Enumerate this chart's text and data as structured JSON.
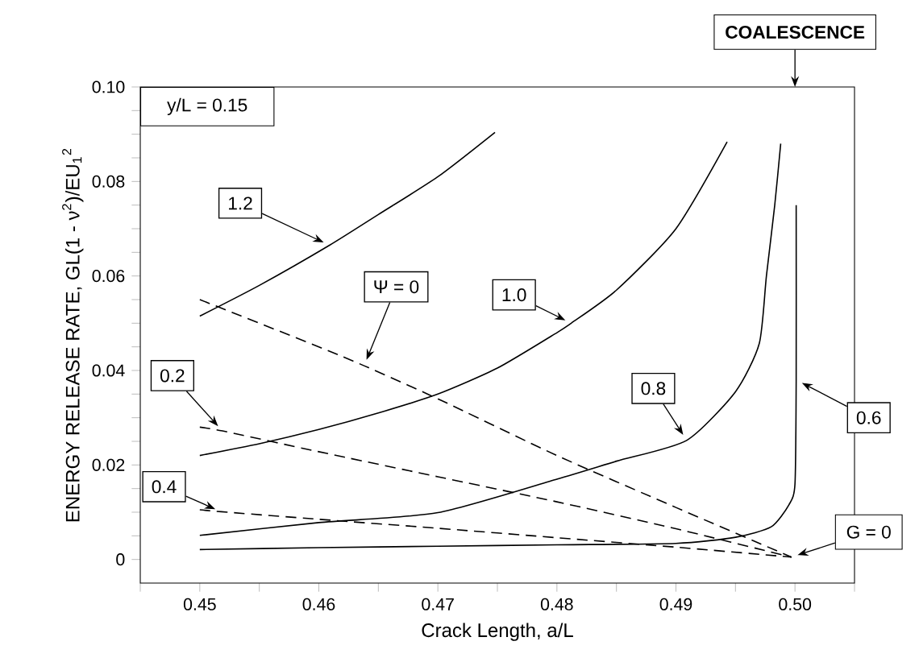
{
  "chart_data": {
    "type": "line",
    "xlabel": "Crack Length, a/L",
    "ylabel": "ENERGY RELEASE RATE, GL(1 - ν$^{2}$)/EU$_{1}$$^{2}$",
    "xlim": [
      0.445,
      0.505
    ],
    "ylim": [
      -0.005,
      0.1
    ],
    "xticks": [
      {
        "value": 0.445,
        "label": null
      },
      0.45,
      {
        "value": 0.455,
        "label": null
      },
      0.46,
      {
        "value": 0.465,
        "label": null
      },
      0.47,
      {
        "value": 0.475,
        "label": null
      },
      0.48,
      {
        "value": 0.485,
        "label": null
      },
      0.49,
      {
        "value": 0.495,
        "label": null
      },
      {
        "value": 0.5,
        "label": "0.50"
      },
      {
        "value": 0.505,
        "label": null
      }
    ],
    "yticks": [
      0,
      {
        "value": 0.005,
        "label": null
      },
      0.02,
      {
        "value": 0.01,
        "label": null
      },
      {
        "value": 0.015,
        "label": null
      },
      {
        "value": 0.025,
        "label": null
      },
      {
        "value": 0.03,
        "label": null
      },
      {
        "value": 0.035,
        "label": null
      },
      0.04,
      {
        "value": 0.045,
        "label": null
      },
      {
        "value": 0.05,
        "label": null
      },
      {
        "value": 0.055,
        "label": null
      },
      0.06,
      {
        "value": 0.065,
        "label": null
      },
      {
        "value": 0.07,
        "label": null
      },
      {
        "value": 0.075,
        "label": null
      },
      0.08,
      {
        "value": 0.085,
        "label": null
      },
      {
        "value": 0.09,
        "label": null
      },
      {
        "value": 0.095,
        "label": null
      },
      {
        "value": 0.1,
        "label": "0.10"
      }
    ],
    "series": [
      {
        "name": "1.2",
        "color": "#000000",
        "line_style": "solid",
        "x": [
          0.45,
          0.455,
          0.4609,
          0.465,
          0.47,
          0.4748
        ],
        "values": [
          0.0515,
          0.058,
          0.0665,
          0.073,
          0.081,
          0.0904
        ]
      },
      {
        "name": "1.0",
        "color": "#000000",
        "line_style": "solid",
        "x": [
          0.45,
          0.455,
          0.46,
          0.465,
          0.47,
          0.475,
          0.48,
          0.4812,
          0.485,
          0.49,
          0.4943
        ],
        "values": [
          0.022,
          0.0245,
          0.0275,
          0.031,
          0.035,
          0.0405,
          0.048,
          0.05,
          0.057,
          0.07,
          0.0884
        ]
      },
      {
        "name": "0.8",
        "color": "#000000",
        "line_style": "solid",
        "x": [
          0.45,
          0.46,
          0.47,
          0.48,
          0.485,
          0.4909,
          0.495,
          0.497,
          0.4976,
          0.4983,
          0.4988
        ],
        "values": [
          0.0051,
          0.0078,
          0.0099,
          0.017,
          0.0208,
          0.0252,
          0.0355,
          0.0457,
          0.06,
          0.075,
          0.088
        ]
      },
      {
        "name": "0.6",
        "color": "#000000",
        "line_style": "solid",
        "x": [
          0.45,
          0.46,
          0.47,
          0.48,
          0.49,
          0.495,
          0.498,
          0.4995,
          0.5,
          0.5001,
          0.5001
        ],
        "values": [
          0.0021,
          0.0025,
          0.0028,
          0.0031,
          0.0034,
          0.0047,
          0.0069,
          0.0116,
          0.016,
          0.038,
          0.075
        ]
      },
      {
        "name": "Ψ = 0",
        "color": "#000000",
        "line_style": "dashed",
        "x": [
          0.45,
          0.46,
          0.4638,
          0.47,
          0.48,
          0.49,
          0.4997
        ],
        "values": [
          0.055,
          0.045,
          0.041,
          0.034,
          0.022,
          0.011,
          0.0005
        ]
      },
      {
        "name": "0.2",
        "color": "#000000",
        "line_style": "dashed",
        "x": [
          0.45,
          0.4519,
          0.46,
          0.47,
          0.48,
          0.49,
          0.4997
        ],
        "values": [
          0.028,
          0.0272,
          0.0228,
          0.0175,
          0.0122,
          0.0065,
          0.0005
        ]
      },
      {
        "name": "0.4",
        "color": "#000000",
        "line_style": "dashed",
        "x": [
          0.45,
          0.4518,
          0.46,
          0.47,
          0.48,
          0.49,
          0.4997
        ],
        "values": [
          0.0105,
          0.0101,
          0.0085,
          0.0066,
          0.0046,
          0.0026,
          0.0005
        ]
      }
    ],
    "annotations": [
      "y/L = 0.15",
      "COALESCENCE",
      {
        "text": "G = 0",
        "x": 0.4997,
        "y": 0.0005
      }
    ]
  }
}
